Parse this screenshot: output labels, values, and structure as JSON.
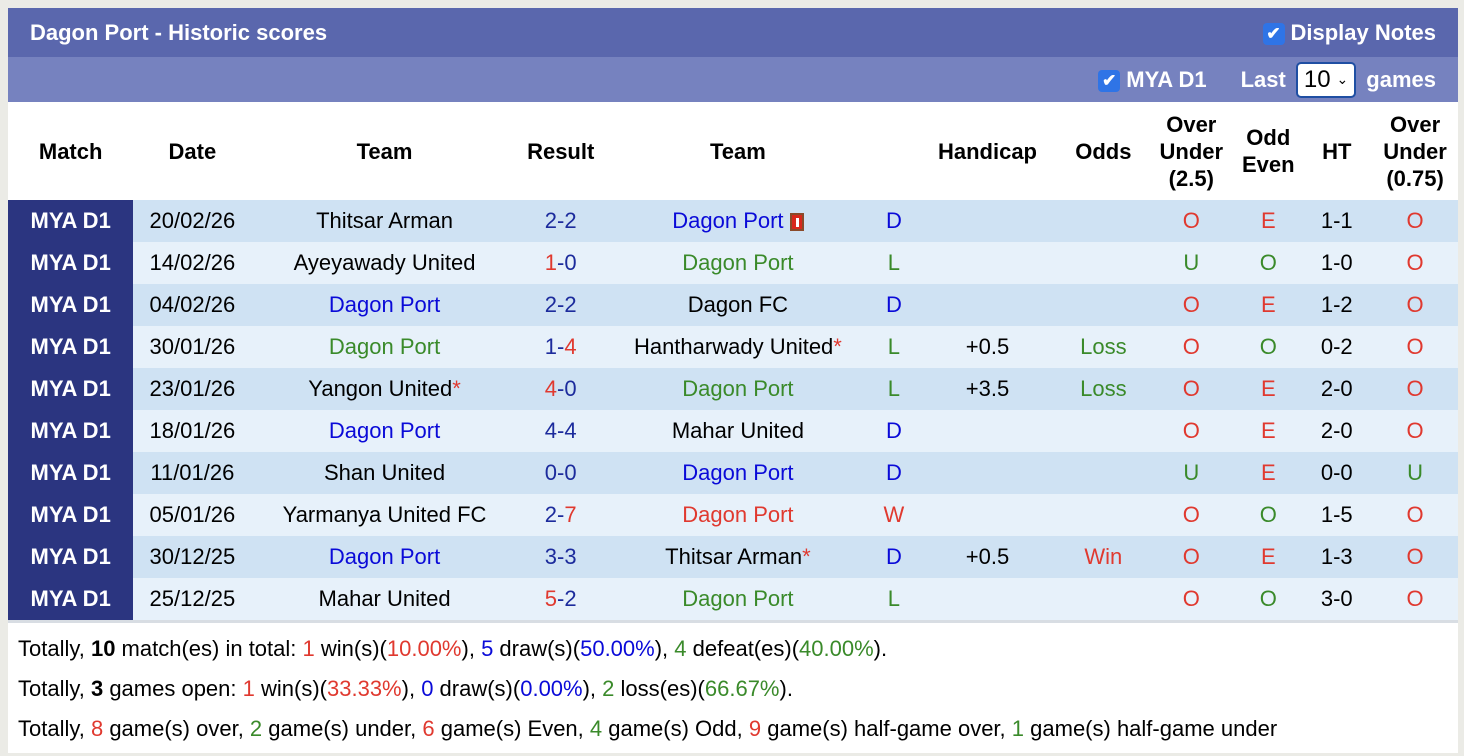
{
  "header": {
    "title": "Dagon Port - Historic scores",
    "display_notes": "Display Notes",
    "league_filter": "MYA D1",
    "last_label": "Last",
    "last_value": "10",
    "games_label": "games"
  },
  "columns": [
    "Match",
    "Date",
    "Team",
    "Result",
    "Team",
    "",
    "Handicap",
    "Odds",
    "Over Under (2.5)",
    "Odd Even",
    "HT",
    "Over Under (0.75)"
  ],
  "colors": {
    "red": "#e0392f",
    "green": "#3a8a2a",
    "blue": "#0a0ad8",
    "match_bg": "#2b3580",
    "title_bg": "#5a67ad",
    "filter_bg": "#7682bf"
  },
  "rows": [
    {
      "league": "MYA D1",
      "date": "20/02/26",
      "home": "Thitsar Arman",
      "home_color": "black",
      "score": [
        [
          "2",
          "navy"
        ],
        [
          "-",
          "navy"
        ],
        [
          "2",
          "navy"
        ]
      ],
      "away": "Dagon Port",
      "away_color": "blue",
      "away_icon": "red-card-icon",
      "res": "D",
      "res_color": "blue",
      "hcp": "",
      "odds": "",
      "odds_color": "",
      "ou": "O",
      "ou_color": "red",
      "oe": "E",
      "oe_color": "red",
      "ht": "1-1",
      "ou2": "O",
      "ou2_color": "red"
    },
    {
      "league": "MYA D1",
      "date": "14/02/26",
      "home": "Ayeyawady United",
      "home_color": "black",
      "score": [
        [
          "1",
          "red"
        ],
        [
          "-",
          "navy"
        ],
        [
          "0",
          "navy"
        ]
      ],
      "away": "Dagon Port",
      "away_color": "green",
      "res": "L",
      "res_color": "green",
      "hcp": "",
      "odds": "",
      "odds_color": "",
      "ou": "U",
      "ou_color": "green",
      "oe": "O",
      "oe_color": "green",
      "ht": "1-0",
      "ou2": "O",
      "ou2_color": "red"
    },
    {
      "league": "MYA D1",
      "date": "04/02/26",
      "home": "Dagon Port",
      "home_color": "blue",
      "score": [
        [
          "2",
          "navy"
        ],
        [
          "-",
          "navy"
        ],
        [
          "2",
          "navy"
        ]
      ],
      "away": "Dagon FC",
      "away_color": "black",
      "res": "D",
      "res_color": "blue",
      "hcp": "",
      "odds": "",
      "odds_color": "",
      "ou": "O",
      "ou_color": "red",
      "oe": "E",
      "oe_color": "red",
      "ht": "1-2",
      "ou2": "O",
      "ou2_color": "red"
    },
    {
      "league": "MYA D1",
      "date": "30/01/26",
      "home": "Dagon Port",
      "home_color": "green",
      "score": [
        [
          "1",
          "navy"
        ],
        [
          "-",
          "navy"
        ],
        [
          "4",
          "red"
        ]
      ],
      "away": "Hantharwady United",
      "away_star": "*",
      "away_color": "black",
      "res": "L",
      "res_color": "green",
      "hcp": "+0.5",
      "odds": "Loss",
      "odds_color": "green",
      "ou": "O",
      "ou_color": "red",
      "oe": "O",
      "oe_color": "green",
      "ht": "0-2",
      "ou2": "O",
      "ou2_color": "red"
    },
    {
      "league": "MYA D1",
      "date": "23/01/26",
      "home": "Yangon United",
      "home_star": "*",
      "home_color": "black",
      "score": [
        [
          "4",
          "red"
        ],
        [
          "-",
          "navy"
        ],
        [
          "0",
          "navy"
        ]
      ],
      "away": "Dagon Port",
      "away_color": "green",
      "res": "L",
      "res_color": "green",
      "hcp": "+3.5",
      "odds": "Loss",
      "odds_color": "green",
      "ou": "O",
      "ou_color": "red",
      "oe": "E",
      "oe_color": "red",
      "ht": "2-0",
      "ou2": "O",
      "ou2_color": "red"
    },
    {
      "league": "MYA D1",
      "date": "18/01/26",
      "home": "Dagon Port",
      "home_color": "blue",
      "score": [
        [
          "4",
          "navy"
        ],
        [
          "-",
          "navy"
        ],
        [
          "4",
          "navy"
        ]
      ],
      "away": "Mahar United",
      "away_color": "black",
      "res": "D",
      "res_color": "blue",
      "hcp": "",
      "odds": "",
      "odds_color": "",
      "ou": "O",
      "ou_color": "red",
      "oe": "E",
      "oe_color": "red",
      "ht": "2-0",
      "ou2": "O",
      "ou2_color": "red"
    },
    {
      "league": "MYA D1",
      "date": "11/01/26",
      "home": "Shan United",
      "home_color": "black",
      "score": [
        [
          "0",
          "navy"
        ],
        [
          "-",
          "navy"
        ],
        [
          "0",
          "navy"
        ]
      ],
      "away": "Dagon Port",
      "away_color": "blue",
      "res": "D",
      "res_color": "blue",
      "hcp": "",
      "odds": "",
      "odds_color": "",
      "ou": "U",
      "ou_color": "green",
      "oe": "E",
      "oe_color": "red",
      "ht": "0-0",
      "ou2": "U",
      "ou2_color": "green"
    },
    {
      "league": "MYA D1",
      "date": "05/01/26",
      "home": "Yarmanya United FC",
      "home_color": "black",
      "score": [
        [
          "2",
          "navy"
        ],
        [
          "-",
          "navy"
        ],
        [
          "7",
          "red"
        ]
      ],
      "away": "Dagon Port",
      "away_color": "red",
      "res": "W",
      "res_color": "red",
      "hcp": "",
      "odds": "",
      "odds_color": "",
      "ou": "O",
      "ou_color": "red",
      "oe": "O",
      "oe_color": "green",
      "ht": "1-5",
      "ou2": "O",
      "ou2_color": "red"
    },
    {
      "league": "MYA D1",
      "date": "30/12/25",
      "home": "Dagon Port",
      "home_color": "blue",
      "score": [
        [
          "3",
          "navy"
        ],
        [
          "-",
          "navy"
        ],
        [
          "3",
          "navy"
        ]
      ],
      "away": "Thitsar Arman",
      "away_star": "*",
      "away_color": "black",
      "res": "D",
      "res_color": "blue",
      "hcp": "+0.5",
      "odds": "Win",
      "odds_color": "red",
      "ou": "O",
      "ou_color": "red",
      "oe": "E",
      "oe_color": "red",
      "ht": "1-3",
      "ou2": "O",
      "ou2_color": "red"
    },
    {
      "league": "MYA D1",
      "date": "25/12/25",
      "home": "Mahar United",
      "home_color": "black",
      "score": [
        [
          "5",
          "red"
        ],
        [
          "-",
          "navy"
        ],
        [
          "2",
          "navy"
        ]
      ],
      "away": "Dagon Port",
      "away_color": "green",
      "res": "L",
      "res_color": "green",
      "hcp": "",
      "odds": "",
      "odds_color": "",
      "ou": "O",
      "ou_color": "red",
      "oe": "O",
      "oe_color": "green",
      "ht": "3-0",
      "ou2": "O",
      "ou2_color": "red"
    }
  ],
  "summary": [
    [
      [
        "Totally, ",
        "black"
      ],
      [
        "10",
        "bold"
      ],
      [
        " match(es) in total: ",
        "black"
      ],
      [
        "1",
        "red"
      ],
      [
        " win(s)(",
        "black"
      ],
      [
        "10.00%",
        "red"
      ],
      [
        "), ",
        "black"
      ],
      [
        "5",
        "blue"
      ],
      [
        " draw(s)(",
        "black"
      ],
      [
        "50.00%",
        "blue"
      ],
      [
        "), ",
        "black"
      ],
      [
        "4",
        "green"
      ],
      [
        " defeat(es)(",
        "black"
      ],
      [
        "40.00%",
        "green"
      ],
      [
        ").",
        "black"
      ]
    ],
    [
      [
        "Totally, ",
        "black"
      ],
      [
        "3",
        "bold"
      ],
      [
        " games open: ",
        "black"
      ],
      [
        "1",
        "red"
      ],
      [
        " win(s)(",
        "black"
      ],
      [
        "33.33%",
        "red"
      ],
      [
        "), ",
        "black"
      ],
      [
        "0",
        "blue"
      ],
      [
        " draw(s)(",
        "black"
      ],
      [
        "0.00%",
        "blue"
      ],
      [
        "), ",
        "black"
      ],
      [
        "2",
        "green"
      ],
      [
        " loss(es)(",
        "black"
      ],
      [
        "66.67%",
        "green"
      ],
      [
        ").",
        "black"
      ]
    ],
    [
      [
        "Totally, ",
        "black"
      ],
      [
        "8",
        "red"
      ],
      [
        " game(s) over, ",
        "black"
      ],
      [
        "2",
        "green"
      ],
      [
        " game(s) under, ",
        "black"
      ],
      [
        "6",
        "red"
      ],
      [
        " game(s) Even, ",
        "black"
      ],
      [
        "4",
        "green"
      ],
      [
        " game(s) Odd, ",
        "black"
      ],
      [
        "9",
        "red"
      ],
      [
        " game(s) half-game over, ",
        "black"
      ],
      [
        "1",
        "green"
      ],
      [
        " game(s) half-game under",
        "black"
      ]
    ]
  ]
}
